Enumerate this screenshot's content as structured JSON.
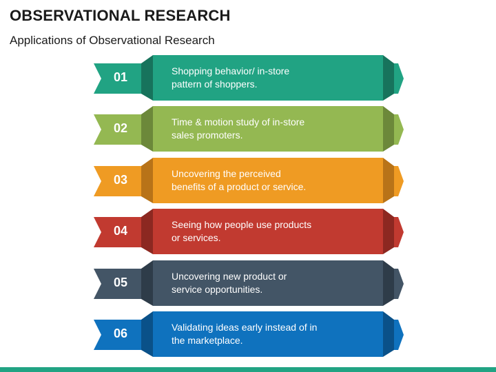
{
  "title": "OBSERVATIONAL RESEARCH",
  "subtitle": "Applications of Observational Research",
  "items": [
    {
      "number": "01",
      "text": "Shopping behavior/ in-store\npattern of shoppers.",
      "color": "#21A383",
      "dark": "#17735C"
    },
    {
      "number": "02",
      "text": "Time & motion study of in-store\nsales promoters.",
      "color": "#94B852",
      "dark": "#6C883A"
    },
    {
      "number": "03",
      "text": "Uncovering the perceived\nbenefits of a product or service.",
      "color": "#EF9B23",
      "dark": "#B87318"
    },
    {
      "number": "04",
      "text": "Seeing how people use products\nor services.",
      "color": "#C13A30",
      "dark": "#8C2821"
    },
    {
      "number": "05",
      "text": "Uncovering new product or\nservice opportunities.",
      "color": "#435566",
      "dark": "#2E3C49"
    },
    {
      "number": "06",
      "text": "Validating ideas early instead of in\nthe marketplace.",
      "color": "#0F72BE",
      "dark": "#0A5189"
    }
  ],
  "accent": "#21A383"
}
